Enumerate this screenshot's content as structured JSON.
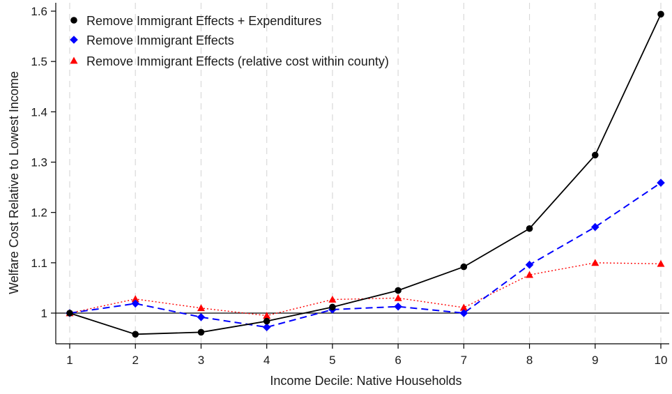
{
  "chart_data": {
    "type": "line",
    "xlabel": "Income Decile: Native Households",
    "ylabel": "Welfare Cost Relative to Lowest Income",
    "x": [
      1,
      2,
      3,
      4,
      5,
      6,
      7,
      8,
      9,
      10
    ],
    "x_ticks": [
      "1",
      "2",
      "3",
      "4",
      "5",
      "6",
      "7",
      "8",
      "9",
      "10"
    ],
    "y_ticks": [
      "1",
      "1.1",
      "1.2",
      "1.3",
      "1.4",
      "1.5",
      "1.6"
    ],
    "y_tick_values": [
      1.0,
      1.1,
      1.2,
      1.3,
      1.4,
      1.5,
      1.6
    ],
    "xlim": [
      1,
      10
    ],
    "ylim": [
      0.94,
      1.61
    ],
    "grid": "vertical dashed",
    "reference_line": 1.0,
    "legend_position": "top-left",
    "series": [
      {
        "name": "Remove Immigrant Effects + Expenditures",
        "color": "#000000",
        "marker": "circle",
        "line": "solid",
        "values": [
          1.0,
          0.958,
          0.962,
          0.984,
          1.012,
          1.045,
          1.092,
          1.168,
          1.314,
          1.594
        ]
      },
      {
        "name": "Remove Immigrant Effects",
        "color": "#0000ff",
        "marker": "diamond",
        "line": "dashed",
        "values": [
          1.0,
          1.019,
          0.992,
          0.972,
          1.007,
          1.013,
          1.0,
          1.096,
          1.171,
          1.259
        ]
      },
      {
        "name": "Remove Immigrant Effects (relative cost within county)",
        "color": "#ff0000",
        "marker": "triangle",
        "line": "dotted",
        "values": [
          1.0,
          1.028,
          1.01,
          0.995,
          1.027,
          1.03,
          1.011,
          1.076,
          1.1,
          1.098
        ]
      }
    ]
  }
}
